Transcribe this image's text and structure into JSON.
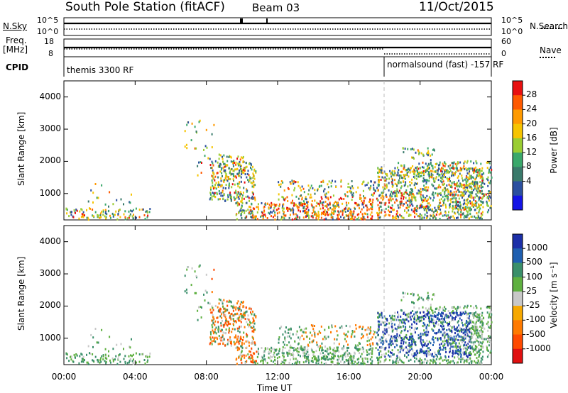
{
  "header": {
    "station": "South Pole Station (fitACF)",
    "beam": "Beam 03",
    "date": "11/Oct/2015"
  },
  "top_panels": {
    "nsky_label": "N.Sky",
    "nsky_ticks": [
      "10^5",
      "10^0"
    ],
    "nsearch_label": "N.Search",
    "nsearch_ticks": [
      "10^5",
      "10^0"
    ],
    "freq_label_1": "Freq.",
    "freq_label_2": "[MHz]",
    "freq_ticks": [
      "18",
      "8"
    ],
    "nave_label": "Nave",
    "nave_ticks": [
      "60",
      "0"
    ],
    "cpid_label": "CPID",
    "cpid_1": "themis 3300 RF",
    "cpid_2": "normalsound (fast) -157 RF"
  },
  "chart_data": [
    {
      "type": "heatmap",
      "panel": "power",
      "ylabel": "Slant Range [km]",
      "yticks": [
        "4000",
        "3000",
        "2000",
        "1000"
      ],
      "ylim": [
        180,
        4500
      ],
      "colorbar_label": "Power [dB]",
      "colorbar_ticks": [
        "28",
        "24",
        "20",
        "16",
        "12",
        "8",
        "4"
      ],
      "colorbar_colors": [
        "#e81010",
        "#ff5a00",
        "#ff9a00",
        "#f6c400",
        "#9acd32",
        "#3aa86b",
        "#3a7a6b",
        "#2b4fa0",
        "#1414e6"
      ],
      "colorbar_range": [
        0,
        32
      ]
    },
    {
      "type": "heatmap",
      "panel": "velocity",
      "ylabel": "Slant Range [km]",
      "yticks": [
        "4000",
        "3000",
        "2000",
        "1000"
      ],
      "ylim": [
        180,
        4500
      ],
      "colorbar_label": "Velocity [m s⁻¹]",
      "colorbar_ticks": [
        "1000",
        "500",
        "100",
        "25",
        "-25",
        "-100",
        "-500",
        "-1000"
      ],
      "colorbar_colors": [
        "#1c2fa8",
        "#1f5fb0",
        "#3a8f6a",
        "#5fb040",
        "#c8c8c8",
        "#f6a800",
        "#ff7a00",
        "#ff4a00",
        "#e01010"
      ]
    }
  ],
  "xaxis": {
    "ticks": [
      "00:00",
      "04:00",
      "08:00",
      "12:00",
      "16:00",
      "20:00",
      "00:00"
    ],
    "label": "Time UT"
  }
}
